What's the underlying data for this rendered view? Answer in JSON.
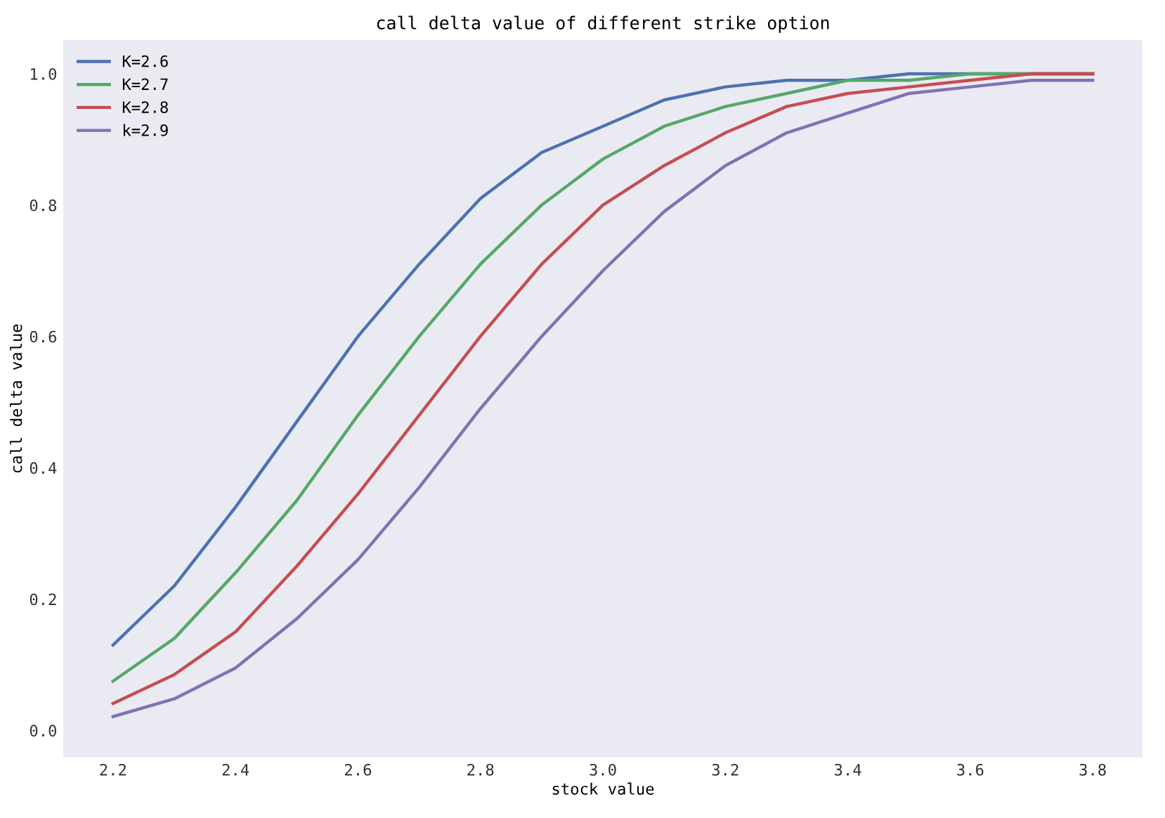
{
  "chart_data": {
    "type": "line",
    "title": "call delta value of different strike option",
    "xlabel": "stock value",
    "ylabel": "call delta value",
    "x": [
      2.2,
      2.3,
      2.4,
      2.5,
      2.6,
      2.7,
      2.8,
      2.9,
      3.0,
      3.1,
      3.2,
      3.3,
      3.4,
      3.5,
      3.6,
      3.7,
      3.8
    ],
    "series": [
      {
        "name": "K=2.6",
        "color": "#4c72b0",
        "values": [
          0.13,
          0.22,
          0.34,
          0.47,
          0.6,
          0.71,
          0.81,
          0.88,
          0.92,
          0.96,
          0.98,
          0.99,
          0.99,
          1.0,
          1.0,
          1.0,
          1.0
        ]
      },
      {
        "name": "K=2.7",
        "color": "#55a868",
        "values": [
          0.075,
          0.14,
          0.24,
          0.35,
          0.48,
          0.6,
          0.71,
          0.8,
          0.87,
          0.92,
          0.95,
          0.97,
          0.99,
          0.99,
          1.0,
          1.0,
          1.0
        ]
      },
      {
        "name": "K=2.8",
        "color": "#c44e52",
        "values": [
          0.041,
          0.085,
          0.15,
          0.25,
          0.36,
          0.48,
          0.6,
          0.71,
          0.8,
          0.86,
          0.91,
          0.95,
          0.97,
          0.98,
          0.99,
          1.0,
          1.0
        ]
      },
      {
        "name": "k=2.9",
        "color": "#8172b2",
        "values": [
          0.021,
          0.048,
          0.095,
          0.17,
          0.26,
          0.37,
          0.49,
          0.6,
          0.7,
          0.79,
          0.86,
          0.91,
          0.94,
          0.97,
          0.98,
          0.99,
          0.99
        ]
      }
    ],
    "xlim": [
      2.12,
      3.88
    ],
    "ylim": [
      -0.04,
      1.05
    ],
    "xticks": [
      2.2,
      2.4,
      2.6,
      2.8,
      {
        "value": 3,
        "label": "3.0"
      },
      3.2,
      3.4,
      3.6,
      3.8
    ],
    "yticks": [
      {
        "value": 0,
        "label": "0.0"
      },
      0.2,
      0.4,
      0.6,
      0.8,
      {
        "value": 1,
        "label": "1.0"
      }
    ],
    "legend": "top left",
    "grid": false,
    "marker": "none",
    "line_style": "solid"
  }
}
